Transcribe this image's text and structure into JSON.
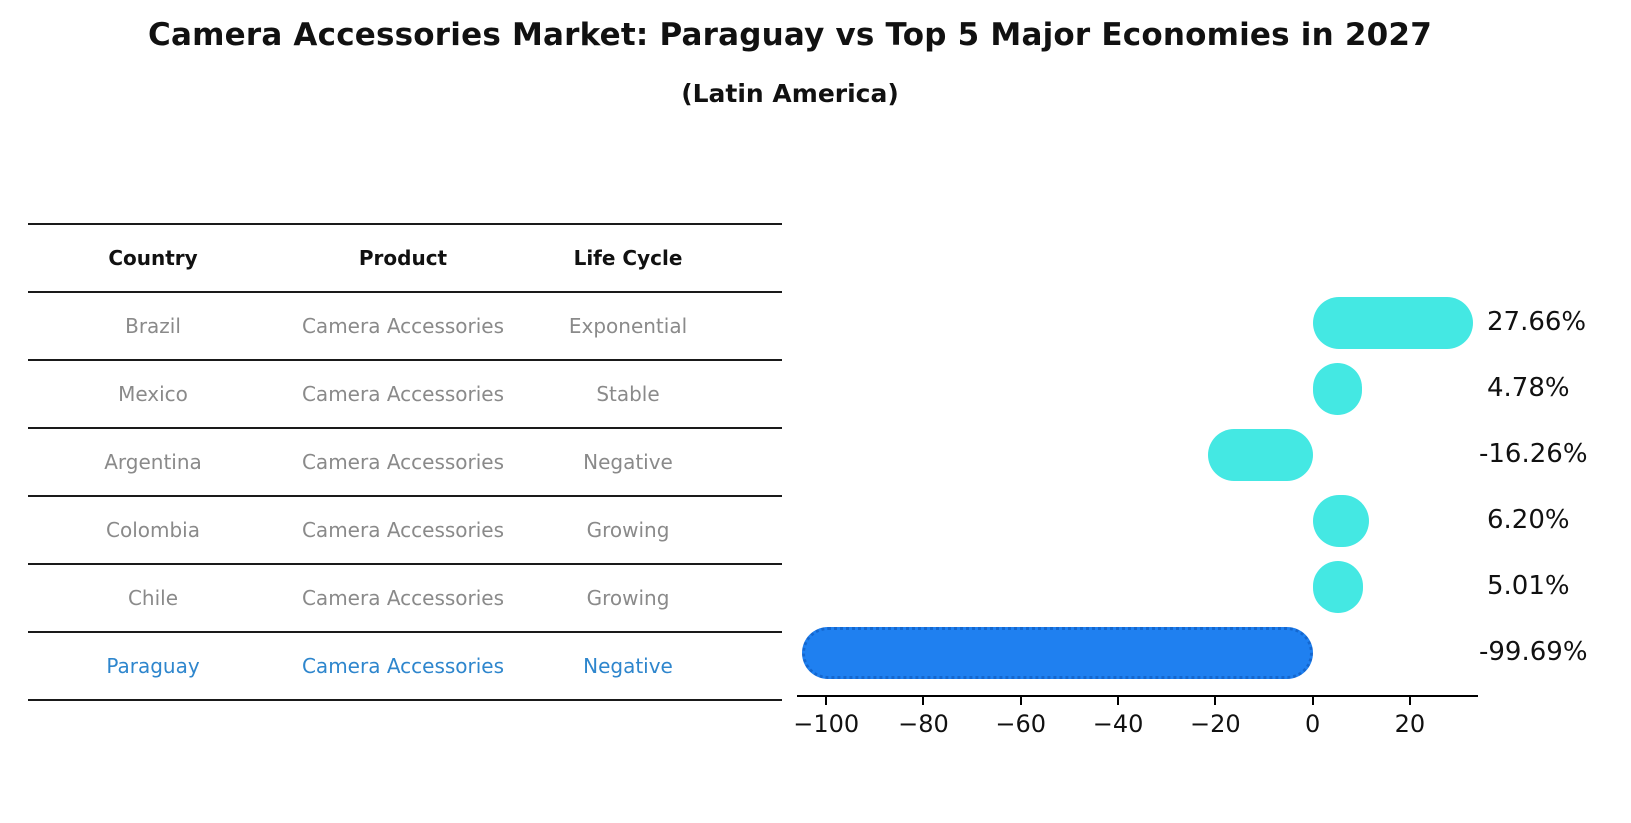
{
  "title": "Camera Accessories Market: Paraguay vs Top 5 Major Economies in 2027",
  "subtitle": "(Latin America)",
  "table": {
    "headers": [
      "Country",
      "Product",
      "Life Cycle"
    ],
    "rows": [
      {
        "country": "Brazil",
        "product": "Camera Accessories",
        "life_cycle": "Exponential",
        "highlight": false
      },
      {
        "country": "Mexico",
        "product": "Camera Accessories",
        "life_cycle": "Stable",
        "highlight": false
      },
      {
        "country": "Argentina",
        "product": "Camera Accessories",
        "life_cycle": "Negative",
        "highlight": false
      },
      {
        "country": "Colombia",
        "product": "Camera Accessories",
        "life_cycle": "Growing",
        "highlight": false
      },
      {
        "country": "Chile",
        "product": "Camera Accessories",
        "life_cycle": "Growing",
        "highlight": true
      }
    ],
    "highlight_row": {
      "country": "Paraguay",
      "product": "Camera Accessories",
      "life_cycle": "Negative"
    }
  },
  "chart_data": {
    "type": "bar",
    "orientation": "horizontal",
    "title": "Camera Accessories Market: Paraguay vs Top 5 Major Economies in 2027 (Latin America)",
    "categories": [
      "Brazil",
      "Mexico",
      "Argentina",
      "Colombia",
      "Chile",
      "Paraguay"
    ],
    "values": [
      27.66,
      4.78,
      -16.26,
      6.2,
      5.01,
      -99.69
    ],
    "value_labels": [
      "27.66%",
      "4.78%",
      "-16.26%",
      "6.20%",
      "5.01%",
      "-99.69%"
    ],
    "highlight_index": 5,
    "x_ticks": [
      -100,
      -80,
      -60,
      -40,
      -20,
      0,
      20
    ],
    "x_tick_labels": [
      "−100",
      "−80",
      "−60",
      "−40",
      "−20",
      "0",
      "20"
    ],
    "xlim": [
      -106,
      34
    ],
    "grid": false,
    "legend": "none",
    "bar_color_default": "#44e8e3",
    "bar_color_highlight": "#1f80f0",
    "bar_edge_highlight": "#1467cf",
    "highlight_text_color": "#2e86cd",
    "xlabel": "",
    "ylabel": ""
  }
}
